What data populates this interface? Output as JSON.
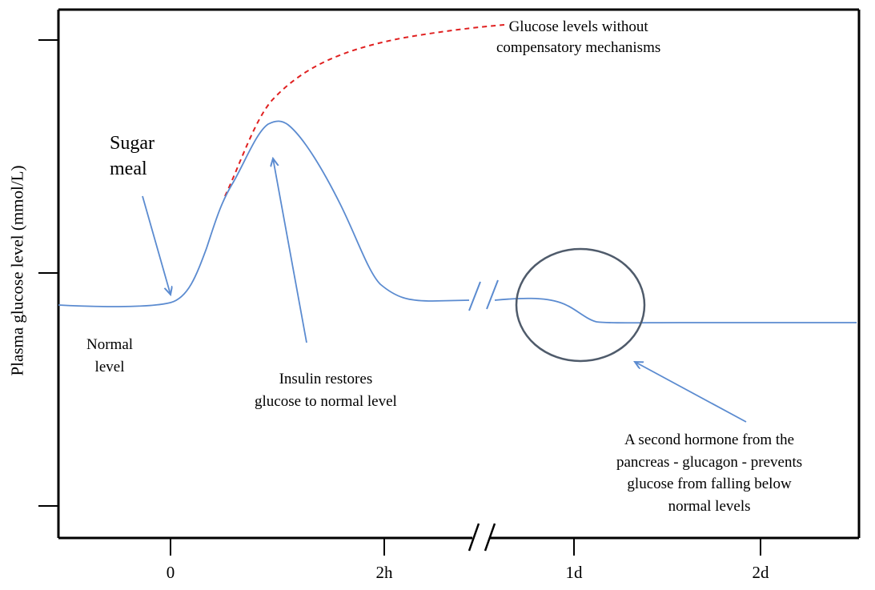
{
  "chart_data": {
    "type": "line",
    "ylabel": "Plasma glucose level (mmol/L)",
    "xticks": [
      "0",
      "2h",
      "1d",
      "2d"
    ],
    "axis_break": true,
    "series": [
      {
        "color": "#5b8bd0",
        "style": "solid",
        "x": [
          -0.6,
          -0.3,
          0,
          0.1,
          0.2,
          0.3,
          0.4,
          0.5,
          0.6,
          0.7,
          0.8,
          0.9,
          1.0,
          1.1,
          1.2,
          1.3,
          1.4,
          1.5,
          1.6,
          1.8,
          2.0,
          2.2,
          2.4,
          2.6
        ],
        "y": [
          5.1,
          5.05,
          5.1,
          5.2,
          5.6,
          6.4,
          7.1,
          7.6,
          8.2,
          8.7,
          9.0,
          9.0,
          8.75,
          8.4,
          7.9,
          7.4,
          6.8,
          6.2,
          5.7,
          5.3,
          5.2,
          5.2,
          5.2,
          5.2
        ]
      },
      {
        "color": "#5b8bd0",
        "style": "solid",
        "x": [
          0.4,
          0.5,
          0.6,
          0.7,
          0.8,
          0.9,
          1.0,
          1.1,
          1.15,
          1.2,
          1.3,
          1.5,
          2.0,
          2.5
        ],
        "y": [
          5.2,
          5.22,
          5.22,
          5.2,
          5.15,
          5.05,
          4.95,
          4.85,
          4.8,
          4.78,
          4.78,
          4.78,
          4.78,
          4.78
        ]
      },
      {
        "color": "#e02020",
        "style": "dashed",
        "x": [
          0.6,
          0.7,
          0.8,
          0.9,
          1.0,
          1.2,
          1.4,
          1.6,
          1.8,
          2.0,
          2.2,
          2.4,
          2.6
        ],
        "y": [
          7.6,
          8.2,
          8.8,
          9.4,
          9.9,
          10.6,
          11.1,
          11.45,
          11.7,
          11.85,
          11.95,
          12.0,
          12.05
        ]
      }
    ],
    "annotations": {
      "sugar_meal": "Sugar meal",
      "normal_level": "Normal level",
      "insulin": "Insulin restores glucose to normal level",
      "without_comp": "Glucose levels without compensatory mechanisms",
      "glucagon": "A second hormone from the pancreas - glucagon - prevents glucose from falling below normal levels"
    },
    "annotation_lines": {
      "sugar_meal": [
        "Sugar",
        "meal"
      ],
      "normal_level": [
        "Normal",
        "level"
      ],
      "insulin": [
        "Insulin restores",
        "glucose to normal level"
      ],
      "without_comp": [
        "Glucose levels without",
        "compensatory mechanisms"
      ],
      "glucagon": [
        "A second hormone from the",
        "pancreas - glucagon - prevents",
        "glucose from falling below",
        "normal levels"
      ]
    },
    "legend": "none",
    "grid": false,
    "colors": {
      "curve": "#5b8bd0",
      "dashed": "#e02020",
      "circle": "#4f5b6b",
      "axis": "#000000"
    }
  }
}
